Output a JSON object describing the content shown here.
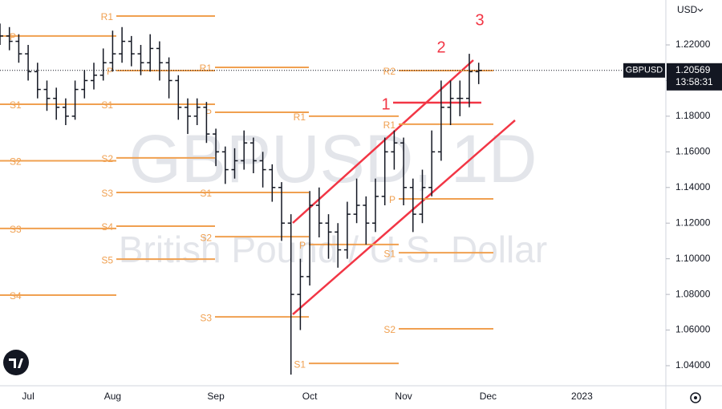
{
  "chart_data": {
    "type": "ohlc",
    "watermark": "GBPUSD, 1D",
    "subtitle": "British Pound / U.S. Dollar",
    "currency": "USD",
    "symbol": "GBPUSD",
    "last_price": {
      "value": 1.20569,
      "label": "1.20569"
    },
    "countdown": "13:58:31",
    "annotations": [
      "1",
      "2",
      "3"
    ],
    "color": "#131722",
    "categories": [
      null,
      null,
      null,
      "Jul",
      null,
      null,
      null,
      null,
      null,
      null,
      null,
      null,
      "Aug",
      null,
      null,
      null,
      null,
      null,
      null,
      null,
      null,
      null,
      null,
      "Sep",
      null,
      null,
      null,
      null,
      null,
      null,
      null,
      null,
      null,
      "Oct",
      null,
      null,
      null,
      null,
      null,
      null,
      null,
      null,
      null,
      "Nov",
      null,
      null,
      null,
      null,
      null,
      null,
      null,
      null,
      "Dec",
      null,
      null,
      null,
      null,
      null,
      null,
      null,
      null,
      null,
      "2023",
      null,
      null,
      null,
      null,
      null,
      null,
      null,
      null
    ],
    "series": [
      {
        "name": "Open",
        "values": [
          1.228,
          1.225,
          1.222,
          1.215,
          1.205,
          1.195,
          1.19,
          1.185,
          1.18,
          1.195,
          1.2,
          1.203,
          1.21,
          1.215,
          1.222,
          1.215,
          1.21,
          1.218,
          1.21,
          1.2,
          1.185,
          1.18,
          1.185,
          1.17,
          1.16,
          1.15,
          1.155,
          1.165,
          1.155,
          1.15,
          1.14,
          1.12,
          1.08,
          1.09,
          1.13,
          1.12,
          1.115,
          1.105,
          1.125,
          1.13,
          1.12,
          1.135,
          1.16,
          1.165,
          1.14,
          1.125,
          1.14,
          1.16,
          1.185,
          1.19,
          1.19,
          1.205,
          null,
          null,
          null,
          null,
          null,
          null,
          null,
          null,
          null,
          null,
          null,
          null,
          null,
          null,
          null,
          null,
          null,
          null,
          null
        ]
      },
      {
        "name": "High",
        "values": [
          1.232,
          1.23,
          1.226,
          1.22,
          1.21,
          1.2,
          1.196,
          1.19,
          1.2,
          1.206,
          1.21,
          1.218,
          1.228,
          1.23,
          1.225,
          1.22,
          1.226,
          1.222,
          1.213,
          1.203,
          1.19,
          1.19,
          1.188,
          1.173,
          1.163,
          1.162,
          1.172,
          1.168,
          1.16,
          1.153,
          1.143,
          1.125,
          1.1,
          1.138,
          1.14,
          1.125,
          1.12,
          1.132,
          1.145,
          1.135,
          1.145,
          1.168,
          1.172,
          1.168,
          1.145,
          1.15,
          1.172,
          1.2,
          1.2,
          1.2,
          1.215,
          1.21,
          null,
          null,
          null,
          null,
          null,
          null,
          null,
          null,
          null,
          null,
          null,
          null,
          null,
          null,
          null,
          null,
          null,
          null,
          null
        ]
      },
      {
        "name": "Low",
        "values": [
          1.22,
          1.217,
          1.21,
          1.2,
          1.19,
          1.183,
          1.178,
          1.175,
          1.178,
          1.19,
          1.195,
          1.2,
          1.205,
          1.21,
          1.208,
          1.203,
          1.205,
          1.2,
          1.19,
          1.178,
          1.17,
          1.175,
          1.165,
          1.152,
          1.142,
          1.145,
          1.15,
          1.148,
          1.14,
          1.132,
          1.11,
          1.035,
          1.06,
          1.085,
          1.112,
          1.1,
          1.095,
          1.1,
          1.12,
          1.108,
          1.115,
          1.13,
          1.15,
          1.13,
          1.115,
          1.12,
          1.135,
          1.155,
          1.175,
          1.18,
          1.185,
          1.198,
          null,
          null,
          null,
          null,
          null,
          null,
          null,
          null,
          null,
          null,
          null,
          null,
          null,
          null,
          null,
          null,
          null,
          null,
          null
        ]
      },
      {
        "name": "Close",
        "values": [
          1.225,
          1.222,
          1.215,
          1.205,
          1.195,
          1.19,
          1.185,
          1.18,
          1.195,
          1.2,
          1.203,
          1.21,
          1.215,
          1.222,
          1.215,
          1.21,
          1.218,
          1.21,
          1.2,
          1.185,
          1.18,
          1.185,
          1.17,
          1.16,
          1.15,
          1.155,
          1.165,
          1.155,
          1.15,
          1.14,
          1.12,
          1.08,
          1.09,
          1.13,
          1.12,
          1.115,
          1.105,
          1.125,
          1.13,
          1.12,
          1.135,
          1.16,
          1.165,
          1.14,
          1.125,
          1.14,
          1.16,
          1.185,
          1.19,
          1.19,
          1.205,
          1.2057,
          null,
          null,
          null,
          null,
          null,
          null,
          null,
          null,
          null,
          null,
          null,
          null,
          null,
          null,
          null,
          null,
          null,
          null,
          null
        ]
      }
    ],
    "ylim": [
      1.0292,
      1.2452
    ],
    "yticks": [
      {
        "value": 1.04,
        "label": "1.04000"
      },
      {
        "value": 1.06,
        "label": "1.06000"
      },
      {
        "value": 1.08,
        "label": "1.08000"
      },
      {
        "value": 1.1,
        "label": "1.10000"
      },
      {
        "value": 1.12,
        "label": "1.12000"
      },
      {
        "value": 1.14,
        "label": "1.14000"
      },
      {
        "value": 1.16,
        "label": "1.16000"
      },
      {
        "value": 1.18,
        "label": "1.18000"
      },
      {
        "value": 1.2,
        "label": "1.20000"
      },
      {
        "value": 1.22,
        "label": "1.22000"
      }
    ],
    "pivot_color": "#f0a050",
    "pivots": [
      {
        "levels": [
          {
            "label": "P",
            "value": 1.225
          },
          {
            "label": "S1",
            "value": 1.1867
          },
          {
            "label": "S2",
            "value": 1.155
          },
          {
            "label": "S3",
            "value": 1.117
          },
          {
            "label": "S4",
            "value": 1.0796
          }
        ]
      },
      {
        "levels": [
          {
            "label": "R1",
            "value": 1.2362
          },
          {
            "label": "P",
            "value": 1.2056
          },
          {
            "label": "S1",
            "value": 1.1867
          },
          {
            "label": "S2",
            "value": 1.1566
          },
          {
            "label": "S3",
            "value": 1.1372
          },
          {
            "label": "S4",
            "value": 1.1183
          },
          {
            "label": "S5",
            "value": 1.0998
          }
        ]
      },
      {
        "levels": [
          {
            "label": "R1",
            "value": 1.2074
          },
          {
            "label": "P",
            "value": 1.1822
          },
          {
            "label": "S1",
            "value": 1.1372
          },
          {
            "label": "S2",
            "value": 1.1124
          },
          {
            "label": "S3",
            "value": 1.0674
          }
        ]
      },
      {
        "levels": [
          {
            "label": "R1",
            "value": 1.18
          },
          {
            "label": "P",
            "value": 1.108
          },
          {
            "label": "S1",
            "value": 1.0413
          }
        ]
      },
      {
        "levels": [
          {
            "label": "R2",
            "value": 1.2056
          },
          {
            "label": "R1",
            "value": 1.1755
          },
          {
            "label": "P",
            "value": 1.1336
          },
          {
            "label": "S1",
            "value": 1.1034
          },
          {
            "label": "S2",
            "value": 1.0607
          }
        ]
      }
    ]
  }
}
